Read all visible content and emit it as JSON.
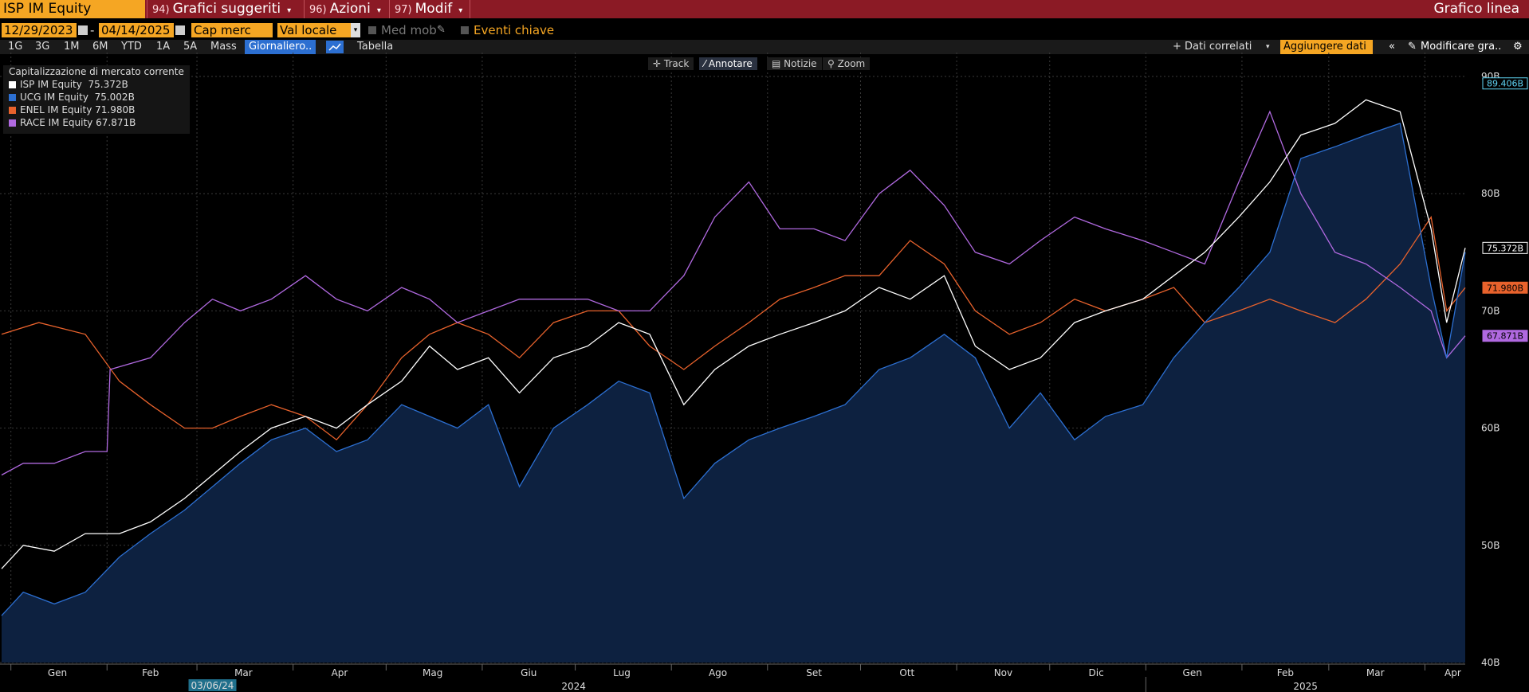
{
  "toolbar": {
    "ticker": "ISP IM Equity",
    "menu1_num": "94)",
    "menu1_label": "Grafici suggeriti",
    "menu2_num": "96)",
    "menu2_label": "Azioni",
    "menu3_num": "97)",
    "menu3_label": "Modif",
    "title": "Grafico linea"
  },
  "controls": {
    "start_date": "12/29/2023",
    "separator": "-",
    "end_date": "04/14/2025",
    "field": "Cap merc",
    "currency": "Val locale",
    "moving_avg": "Med mob",
    "key_events": "Eventi chiave"
  },
  "periods": [
    "1G",
    "3G",
    "1M",
    "6M",
    "YTD",
    "1A",
    "5A",
    "Mass"
  ],
  "frequency": "Giornaliero..",
  "table_label": "Tabella",
  "related_label": "+ Dati correlati",
  "add_data_label": "Aggiungere dati",
  "modify_label": "Modificare gra..",
  "tools": [
    "Track",
    "Annotare",
    "Notizie",
    "Zoom"
  ],
  "legend": {
    "header": "Capitalizzazione di mercato corrente",
    "items": [
      {
        "name": "ISP IM Equity",
        "value": "75.372B",
        "color": "#ffffff"
      },
      {
        "name": "UCG IM Equity",
        "value": "75.002B",
        "color": "#2c6fd1"
      },
      {
        "name": "ENEL IM Equity",
        "value": "71.980B",
        "color": "#e8622c"
      },
      {
        "name": "RACE IM Equity",
        "value": "67.871B",
        "color": "#b069e0"
      }
    ]
  },
  "highlight_date": "03/06/24",
  "chart_data": {
    "type": "line",
    "ylim": [
      40,
      90
    ],
    "y_ticks": [
      "40B",
      "50B",
      "60B",
      "70B",
      "80B",
      "90B"
    ],
    "y_tick_values": [
      40,
      50,
      60,
      70,
      80,
      90
    ],
    "x_ticks": [
      "Gen",
      "Feb",
      "Mar",
      "Apr",
      "Mag",
      "Giu",
      "Lug",
      "Ago",
      "Set",
      "Ott",
      "Nov",
      "Dic",
      "Gen",
      "Feb",
      "Mar",
      "Apr"
    ],
    "years": [
      "2024",
      "2025"
    ],
    "x_range": [
      "2023-12-29",
      "2025-04-14"
    ],
    "last_value_labels": [
      {
        "text": "89.406B",
        "value": 89.406,
        "color": "#5fd3f3"
      },
      {
        "text": "75.372B",
        "value": 75.372,
        "color": "#ffffff"
      },
      {
        "text": "71.980B",
        "value": 71.98,
        "color": "#e8622c"
      },
      {
        "text": "67.871B",
        "value": 67.871,
        "color": "#b069e0"
      }
    ],
    "series": [
      {
        "name": "ISP IM Equity",
        "color": "#ffffff",
        "points": [
          [
            "2023-12-29",
            48
          ],
          [
            "2024-01-05",
            50
          ],
          [
            "2024-01-15",
            49.5
          ],
          [
            "2024-01-25",
            51
          ],
          [
            "2024-02-05",
            51
          ],
          [
            "2024-02-15",
            52
          ],
          [
            "2024-02-26",
            54
          ],
          [
            "2024-03-06",
            56
          ],
          [
            "2024-03-15",
            58
          ],
          [
            "2024-03-25",
            60
          ],
          [
            "2024-04-05",
            61
          ],
          [
            "2024-04-15",
            60
          ],
          [
            "2024-04-25",
            62
          ],
          [
            "2024-05-06",
            64
          ],
          [
            "2024-05-15",
            67
          ],
          [
            "2024-05-24",
            65
          ],
          [
            "2024-06-03",
            66
          ],
          [
            "2024-06-13",
            63
          ],
          [
            "2024-06-24",
            66
          ],
          [
            "2024-07-05",
            67
          ],
          [
            "2024-07-15",
            69
          ],
          [
            "2024-07-25",
            68
          ],
          [
            "2024-08-05",
            62
          ],
          [
            "2024-08-15",
            65
          ],
          [
            "2024-08-26",
            67
          ],
          [
            "2024-09-05",
            68
          ],
          [
            "2024-09-16",
            69
          ],
          [
            "2024-09-26",
            70
          ],
          [
            "2024-10-07",
            72
          ],
          [
            "2024-10-17",
            71
          ],
          [
            "2024-10-28",
            73
          ],
          [
            "2024-11-07",
            67
          ],
          [
            "2024-11-18",
            65
          ],
          [
            "2024-11-28",
            66
          ],
          [
            "2024-12-09",
            69
          ],
          [
            "2024-12-19",
            70
          ],
          [
            "2024-12-31",
            71
          ],
          [
            "2025-01-10",
            73
          ],
          [
            "2025-01-20",
            75
          ],
          [
            "2025-01-31",
            78
          ],
          [
            "2025-02-10",
            81
          ],
          [
            "2025-02-20",
            85
          ],
          [
            "2025-03-03",
            86
          ],
          [
            "2025-03-13",
            88
          ],
          [
            "2025-03-24",
            87
          ],
          [
            "2025-04-03",
            77
          ],
          [
            "2025-04-08",
            69
          ],
          [
            "2025-04-14",
            75.372
          ]
        ]
      },
      {
        "name": "UCG IM Equity",
        "color": "#2c6fd1",
        "points": [
          [
            "2023-12-29",
            44
          ],
          [
            "2024-01-05",
            46
          ],
          [
            "2024-01-15",
            45
          ],
          [
            "2024-01-25",
            46
          ],
          [
            "2024-02-05",
            49
          ],
          [
            "2024-02-15",
            51
          ],
          [
            "2024-02-26",
            53
          ],
          [
            "2024-03-06",
            55
          ],
          [
            "2024-03-15",
            57
          ],
          [
            "2024-03-25",
            59
          ],
          [
            "2024-04-05",
            60
          ],
          [
            "2024-04-15",
            58
          ],
          [
            "2024-04-25",
            59
          ],
          [
            "2024-05-06",
            62
          ],
          [
            "2024-05-15",
            61
          ],
          [
            "2024-05-24",
            60
          ],
          [
            "2024-06-03",
            62
          ],
          [
            "2024-06-13",
            55
          ],
          [
            "2024-06-24",
            60
          ],
          [
            "2024-07-05",
            62
          ],
          [
            "2024-07-15",
            64
          ],
          [
            "2024-07-25",
            63
          ],
          [
            "2024-08-05",
            54
          ],
          [
            "2024-08-15",
            57
          ],
          [
            "2024-08-26",
            59
          ],
          [
            "2024-09-05",
            60
          ],
          [
            "2024-09-16",
            61
          ],
          [
            "2024-09-26",
            62
          ],
          [
            "2024-10-07",
            65
          ],
          [
            "2024-10-17",
            66
          ],
          [
            "2024-10-28",
            68
          ],
          [
            "2024-11-07",
            66
          ],
          [
            "2024-11-18",
            60
          ],
          [
            "2024-11-28",
            63
          ],
          [
            "2024-12-09",
            59
          ],
          [
            "2024-12-19",
            61
          ],
          [
            "2024-12-31",
            62
          ],
          [
            "2025-01-10",
            66
          ],
          [
            "2025-01-20",
            69
          ],
          [
            "2025-01-31",
            72
          ],
          [
            "2025-02-10",
            75
          ],
          [
            "2025-02-20",
            83
          ],
          [
            "2025-03-03",
            84
          ],
          [
            "2025-03-13",
            85
          ],
          [
            "2025-03-24",
            86
          ],
          [
            "2025-04-03",
            72
          ],
          [
            "2025-04-08",
            66
          ],
          [
            "2025-04-14",
            75.002
          ]
        ]
      },
      {
        "name": "ENEL IM Equity",
        "color": "#e8622c",
        "points": [
          [
            "2023-12-29",
            68
          ],
          [
            "2024-01-10",
            69
          ],
          [
            "2024-01-25",
            68
          ],
          [
            "2024-02-05",
            64
          ],
          [
            "2024-02-15",
            62
          ],
          [
            "2024-02-26",
            60
          ],
          [
            "2024-03-06",
            60
          ],
          [
            "2024-03-15",
            61
          ],
          [
            "2024-03-25",
            62
          ],
          [
            "2024-04-05",
            61
          ],
          [
            "2024-04-15",
            59
          ],
          [
            "2024-04-25",
            62
          ],
          [
            "2024-05-06",
            66
          ],
          [
            "2024-05-15",
            68
          ],
          [
            "2024-05-24",
            69
          ],
          [
            "2024-06-03",
            68
          ],
          [
            "2024-06-13",
            66
          ],
          [
            "2024-06-24",
            69
          ],
          [
            "2024-07-05",
            70
          ],
          [
            "2024-07-15",
            70
          ],
          [
            "2024-07-25",
            67
          ],
          [
            "2024-08-05",
            65
          ],
          [
            "2024-08-15",
            67
          ],
          [
            "2024-08-26",
            69
          ],
          [
            "2024-09-05",
            71
          ],
          [
            "2024-09-16",
            72
          ],
          [
            "2024-09-26",
            73
          ],
          [
            "2024-10-07",
            73
          ],
          [
            "2024-10-17",
            76
          ],
          [
            "2024-10-28",
            74
          ],
          [
            "2024-11-07",
            70
          ],
          [
            "2024-11-18",
            68
          ],
          [
            "2024-11-28",
            69
          ],
          [
            "2024-12-09",
            71
          ],
          [
            "2024-12-19",
            70
          ],
          [
            "2024-12-31",
            71
          ],
          [
            "2025-01-10",
            72
          ],
          [
            "2025-01-20",
            69
          ],
          [
            "2025-01-31",
            70
          ],
          [
            "2025-02-10",
            71
          ],
          [
            "2025-02-20",
            70
          ],
          [
            "2025-03-03",
            69
          ],
          [
            "2025-03-13",
            71
          ],
          [
            "2025-03-24",
            74
          ],
          [
            "2025-04-03",
            78
          ],
          [
            "2025-04-08",
            70
          ],
          [
            "2025-04-14",
            71.98
          ]
        ]
      },
      {
        "name": "RACE IM Equity",
        "color": "#b069e0",
        "points": [
          [
            "2023-12-29",
            56
          ],
          [
            "2024-01-05",
            57
          ],
          [
            "2024-01-15",
            57
          ],
          [
            "2024-01-25",
            58
          ],
          [
            "2024-02-01",
            58
          ],
          [
            "2024-02-02",
            65
          ],
          [
            "2024-02-15",
            66
          ],
          [
            "2024-02-26",
            69
          ],
          [
            "2024-03-06",
            71
          ],
          [
            "2024-03-15",
            70
          ],
          [
            "2024-03-25",
            71
          ],
          [
            "2024-04-05",
            73
          ],
          [
            "2024-04-15",
            71
          ],
          [
            "2024-04-25",
            70
          ],
          [
            "2024-05-06",
            72
          ],
          [
            "2024-05-15",
            71
          ],
          [
            "2024-05-24",
            69
          ],
          [
            "2024-06-03",
            70
          ],
          [
            "2024-06-13",
            71
          ],
          [
            "2024-06-24",
            71
          ],
          [
            "2024-07-05",
            71
          ],
          [
            "2024-07-15",
            70
          ],
          [
            "2024-07-25",
            70
          ],
          [
            "2024-08-05",
            73
          ],
          [
            "2024-08-15",
            78
          ],
          [
            "2024-08-26",
            81
          ],
          [
            "2024-09-05",
            77
          ],
          [
            "2024-09-16",
            77
          ],
          [
            "2024-09-26",
            76
          ],
          [
            "2024-10-07",
            80
          ],
          [
            "2024-10-17",
            82
          ],
          [
            "2024-10-28",
            79
          ],
          [
            "2024-11-07",
            75
          ],
          [
            "2024-11-18",
            74
          ],
          [
            "2024-11-28",
            76
          ],
          [
            "2024-12-09",
            78
          ],
          [
            "2024-12-19",
            77
          ],
          [
            "2024-12-31",
            76
          ],
          [
            "2025-01-10",
            75
          ],
          [
            "2025-01-20",
            74
          ],
          [
            "2025-01-31",
            81
          ],
          [
            "2025-02-10",
            87
          ],
          [
            "2025-02-20",
            80
          ],
          [
            "2025-03-03",
            75
          ],
          [
            "2025-03-13",
            74
          ],
          [
            "2025-03-24",
            72
          ],
          [
            "2025-04-03",
            70
          ],
          [
            "2025-04-08",
            66
          ],
          [
            "2025-04-14",
            67.871
          ]
        ]
      }
    ]
  }
}
